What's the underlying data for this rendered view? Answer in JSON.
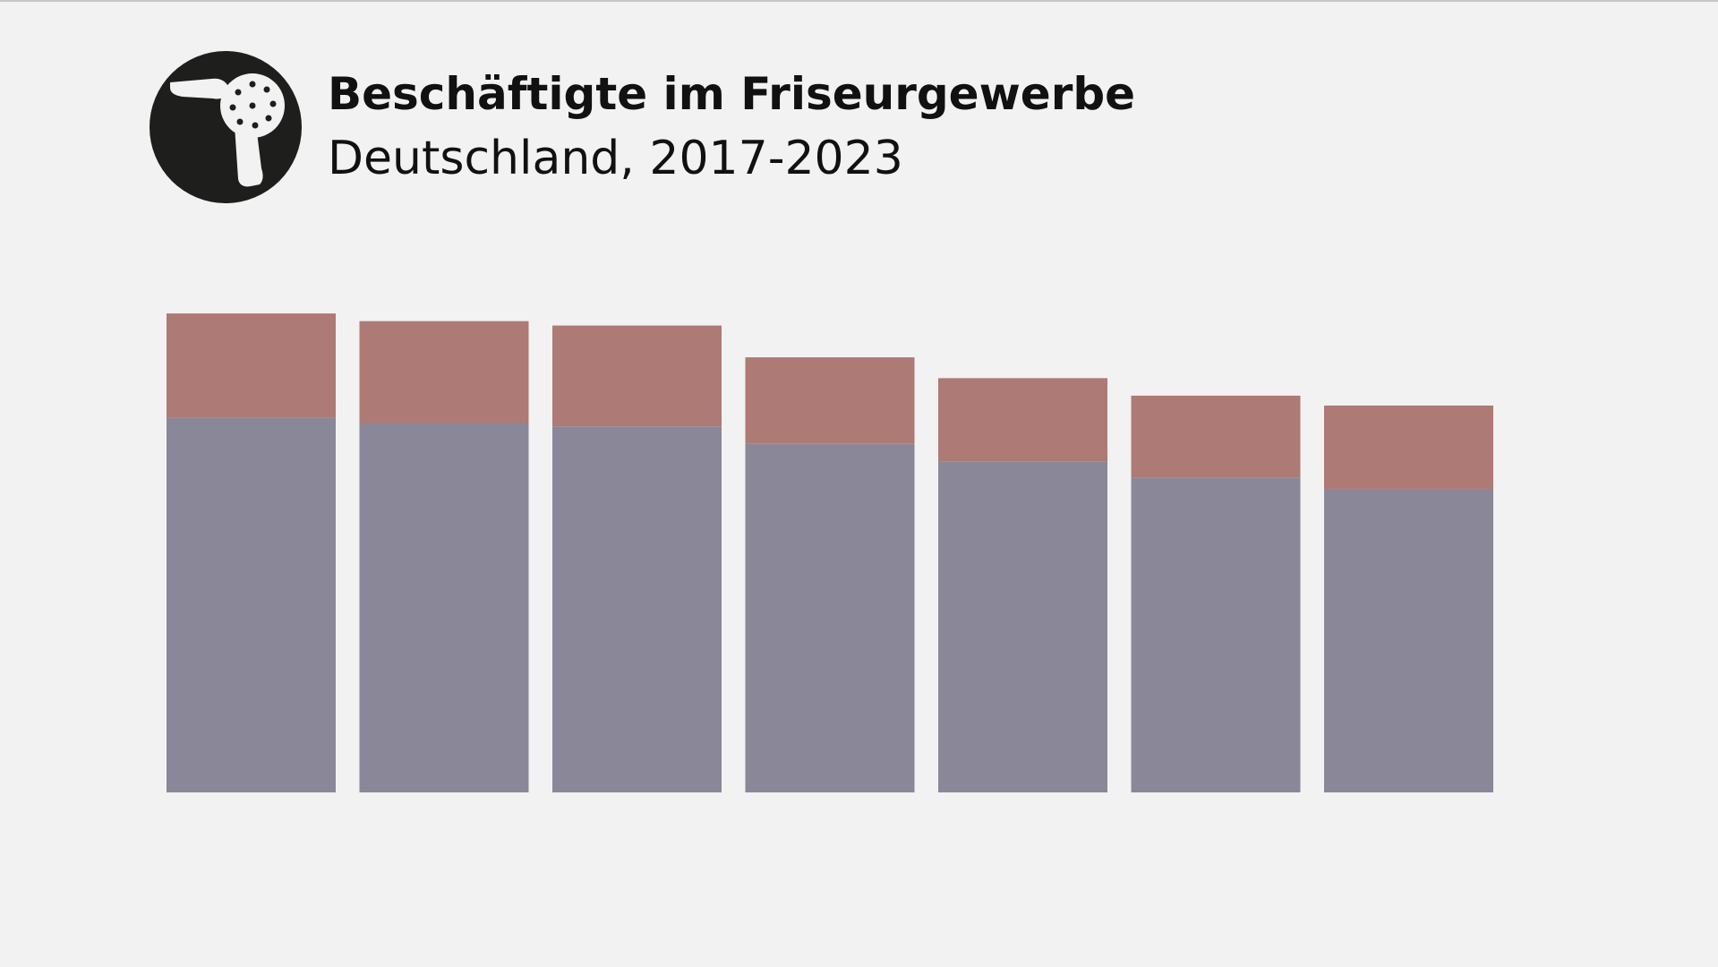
{
  "chart_data": {
    "type": "stacked-bar",
    "title": "Beschäftigte im Friseurgewerbe",
    "subtitle": "Deutschland, 2017-2023",
    "categories": [
      null,
      null,
      null,
      null,
      null,
      null,
      null
    ],
    "series": [
      {
        "color": "#8a8898",
        "values": [
          342,
          337,
          334,
          318,
          302,
          287,
          277
        ]
      },
      {
        "color": "#ad7a75",
        "values": [
          95,
          93,
          92,
          79,
          76,
          75,
          76
        ]
      }
    ],
    "ylim": [
      0,
      500
    ]
  }
}
